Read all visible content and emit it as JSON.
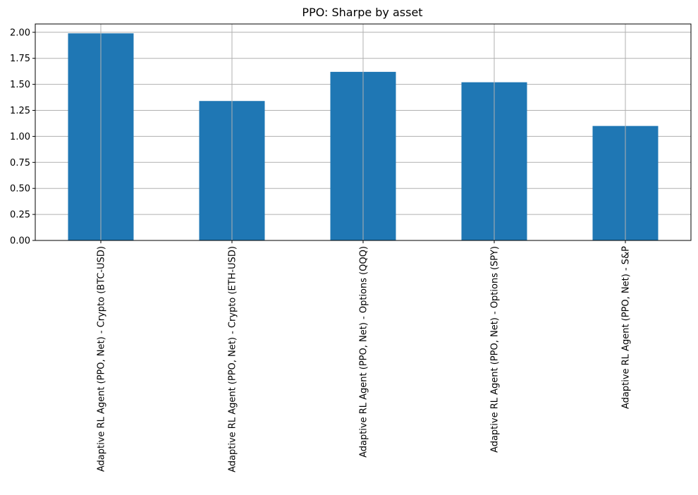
{
  "chart_data": {
    "type": "bar",
    "title": "PPO: Sharpe by asset",
    "xlabel": "",
    "ylabel": "",
    "categories": [
      "Adaptive RL Agent (PPO, Net) - Crypto (BTC-USD)",
      "Adaptive RL Agent (PPO, Net) - Crypto (ETH-USD)",
      "Adaptive RL Agent (PPO, Net) - Options (QQQ)",
      "Adaptive RL Agent (PPO, Net) - Options (SPY)",
      "Adaptive RL Agent (PPO, Net) - S&P"
    ],
    "values": [
      1.99,
      1.34,
      1.62,
      1.52,
      1.1
    ],
    "ylim": [
      0,
      2.08
    ],
    "yticks": [
      "0.00",
      "0.25",
      "0.50",
      "0.75",
      "1.00",
      "1.25",
      "1.50",
      "1.75",
      "2.00"
    ],
    "grid": true,
    "bar_color": "#1f77b4"
  }
}
